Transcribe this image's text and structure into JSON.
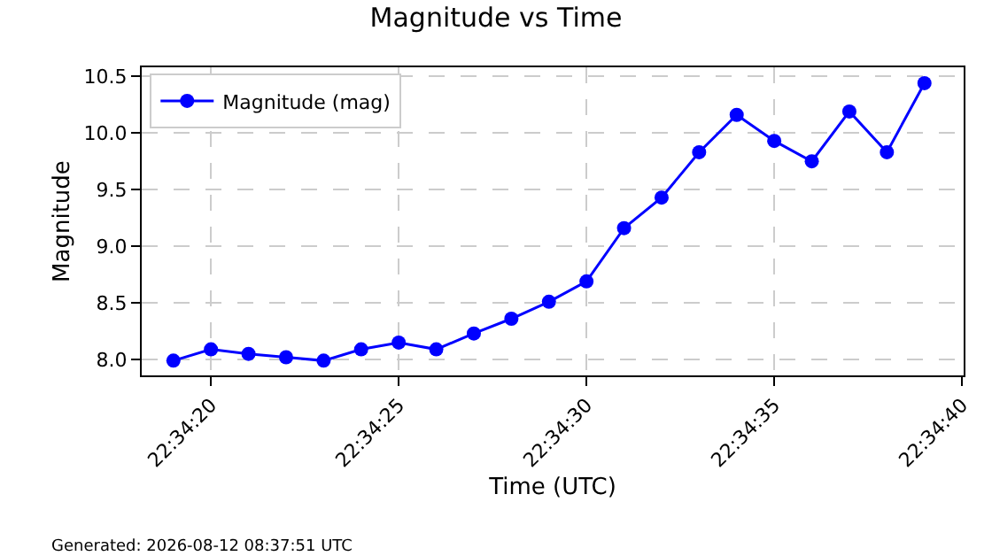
{
  "chart_data": {
    "type": "line",
    "title": "Magnitude vs Time",
    "xlabel": "Time (UTC)",
    "ylabel": "Magnitude",
    "x": [
      22.5719444,
      22.5722222,
      22.5725,
      22.5727778,
      22.5730556,
      22.5733333,
      22.5736111,
      22.5738889,
      22.5741667,
      22.5744444,
      22.5747222,
      22.575,
      22.5752778,
      22.5755556,
      22.5758333,
      22.5761111,
      22.5763889,
      22.5766667,
      22.5769444,
      22.5772222,
      22.5775
    ],
    "series": [
      {
        "name": "Magnitude (mag)",
        "color": "#0000ff",
        "values": [
          7.99,
          8.09,
          8.05,
          8.02,
          7.99,
          8.09,
          8.15,
          8.09,
          8.23,
          8.36,
          8.51,
          8.69,
          9.16,
          9.43,
          9.83,
          10.16,
          9.93,
          9.75,
          10.19,
          9.83,
          10.44
        ]
      }
    ],
    "xlim": [
      22.57171,
      22.57779
    ],
    "xticks": [
      {
        "value": 22.5722222,
        "label": "22:34:20"
      },
      {
        "value": 22.5736111,
        "label": "22:34:25"
      },
      {
        "value": 22.575,
        "label": "22:34:30"
      },
      {
        "value": 22.5763889,
        "label": "22:34:35"
      },
      {
        "value": 22.5777778,
        "label": "22:34:40"
      }
    ],
    "ylim": [
      7.86,
      10.58
    ],
    "yticks": [
      {
        "value": 8.0,
        "label": "8.0"
      },
      {
        "value": 8.5,
        "label": "8.5"
      },
      {
        "value": 9.0,
        "label": "9.0"
      },
      {
        "value": 9.5,
        "label": "9.5"
      },
      {
        "value": 10.0,
        "label": "10.0"
      },
      {
        "value": 10.5,
        "label": "10.5"
      }
    ],
    "grid": true,
    "legend": "top left",
    "marker": "circle",
    "line_style": "solid",
    "annotations": [
      "Generated: 2026-08-12 08:37:51 UTC"
    ]
  }
}
